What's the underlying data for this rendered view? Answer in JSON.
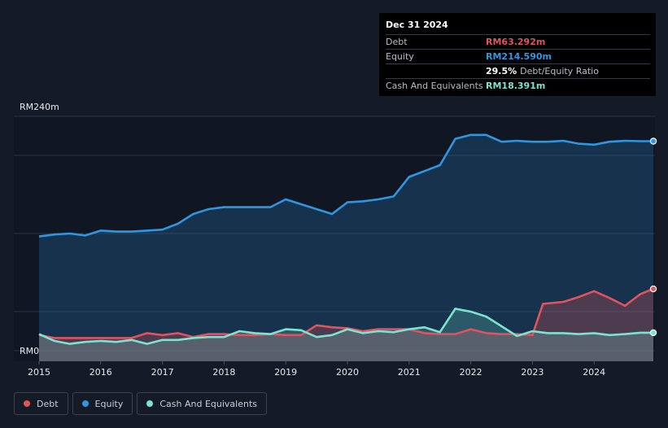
{
  "chart_data": {
    "type": "area",
    "ylim": [
      0,
      240
    ],
    "y_axis_labels": {
      "top": "RM240m",
      "bottom": "RM0"
    },
    "x_ticks": [
      "2015",
      "2016",
      "2017",
      "2018",
      "2019",
      "2020",
      "2021",
      "2022",
      "2023",
      "2024"
    ],
    "grid": true,
    "legend_position": "bottom-left",
    "series": [
      {
        "name": "Debt",
        "color": "#e0535f",
        "x": [
          2015.0,
          2015.25,
          2015.75,
          2016.0,
          2016.5,
          2016.75,
          2017.0,
          2017.25,
          2017.5,
          2017.75,
          2018.0,
          2018.25,
          2018.5,
          2018.75,
          2019.0,
          2019.25,
          2019.5,
          2019.75,
          2020.0,
          2020.25,
          2020.5,
          2020.75,
          2021.0,
          2021.25,
          2021.5,
          2021.75,
          2022.0,
          2022.25,
          2022.5,
          2022.75,
          2023.0,
          2023.17,
          2023.5,
          2023.75,
          2024.0,
          2024.25,
          2024.5,
          2024.75,
          2025.0
        ],
        "values": [
          16,
          13,
          13,
          13,
          13,
          18,
          16,
          18,
          14,
          17,
          17,
          16,
          16,
          17,
          16,
          16,
          26,
          24,
          23,
          20,
          22,
          22,
          22,
          18,
          17,
          17,
          22,
          18,
          17,
          17,
          16,
          48,
          50,
          55,
          61,
          54,
          46,
          58,
          63.292
        ]
      },
      {
        "name": "Equity",
        "color": "#2f96e2",
        "x": [
          2015.0,
          2015.25,
          2015.5,
          2015.75,
          2016.0,
          2016.25,
          2016.5,
          2016.75,
          2017.0,
          2017.25,
          2017.5,
          2017.75,
          2018.0,
          2018.25,
          2018.5,
          2018.75,
          2019.0,
          2019.25,
          2019.5,
          2019.75,
          2020.0,
          2020.25,
          2020.5,
          2020.75,
          2021.0,
          2021.25,
          2021.5,
          2021.75,
          2022.0,
          2022.25,
          2022.5,
          2022.75,
          2023.0,
          2023.25,
          2023.5,
          2023.75,
          2024.0,
          2024.25,
          2024.5,
          2024.75,
          2025.0
        ],
        "values": [
          117,
          119,
          120,
          118,
          123,
          122,
          122,
          123,
          124,
          130,
          140,
          145,
          147,
          147,
          147,
          147,
          155,
          150,
          145,
          140,
          152,
          153,
          155,
          158,
          178,
          184,
          190,
          217,
          221,
          221,
          214,
          215,
          214,
          214,
          215,
          212,
          211,
          214,
          215,
          214.59,
          214.59
        ]
      },
      {
        "name": "Cash And Equivalents",
        "color": "#7de3d1",
        "x": [
          2015.0,
          2015.25,
          2015.5,
          2015.75,
          2016.0,
          2016.25,
          2016.5,
          2016.75,
          2017.0,
          2017.25,
          2017.5,
          2017.75,
          2018.0,
          2018.25,
          2018.5,
          2018.75,
          2019.0,
          2019.25,
          2019.5,
          2019.75,
          2020.0,
          2020.25,
          2020.5,
          2020.75,
          2021.0,
          2021.25,
          2021.5,
          2021.75,
          2022.0,
          2022.25,
          2022.5,
          2022.75,
          2023.0,
          2023.25,
          2023.5,
          2023.75,
          2024.0,
          2024.25,
          2024.5,
          2024.75,
          2025.0
        ],
        "values": [
          17,
          10,
          7,
          9,
          10,
          9,
          11,
          7,
          11,
          11,
          13,
          14,
          14,
          20,
          18,
          17,
          22,
          21,
          14,
          16,
          22,
          18,
          20,
          19,
          22,
          24,
          19,
          43,
          40,
          35,
          25,
          15,
          20,
          18,
          18,
          17,
          18,
          16,
          17,
          18.391,
          18.391
        ]
      }
    ]
  },
  "tooltip": {
    "date": "Dec 31 2024",
    "rows": [
      {
        "label": "Debt",
        "value": "RM63.292m",
        "color": "#e0535f",
        "unit": ""
      },
      {
        "label": "Equity",
        "value": "RM214.590m",
        "color": "#2f96e2",
        "unit": ""
      },
      {
        "label": "",
        "value": "29.5%",
        "color": "#ffffff",
        "unit": "Debt/Equity Ratio"
      },
      {
        "label": "Cash And Equivalents",
        "value": "RM18.391m",
        "color": "#7de3d1",
        "unit": ""
      }
    ]
  },
  "legend": [
    {
      "label": "Debt",
      "color": "#e0535f"
    },
    {
      "label": "Equity",
      "color": "#2f96e2"
    },
    {
      "label": "Cash And Equivalents",
      "color": "#7de3d1"
    }
  ]
}
